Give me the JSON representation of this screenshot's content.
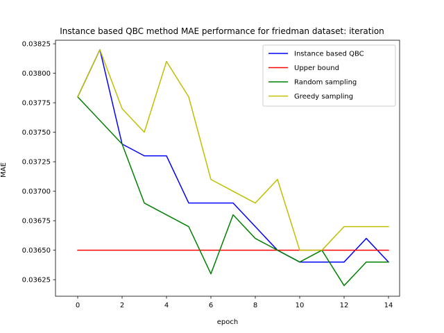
{
  "chart_data": {
    "type": "line",
    "title": "Instance based QBC method MAE performance for friedman dataset: iteration",
    "xlabel": "epoch",
    "ylabel": "MAE",
    "xlim": [
      -1.0,
      14.5
    ],
    "ylim": [
      0.03611,
      0.03828
    ],
    "xticks": [
      0,
      2,
      4,
      6,
      8,
      10,
      12,
      14
    ],
    "yticks": [
      0.03625,
      0.0365,
      0.03675,
      0.037,
      0.03725,
      0.0375,
      0.03775,
      0.038,
      0.03825
    ],
    "ytick_labels": [
      "0.03625",
      "0.03650",
      "0.03675",
      "0.03700",
      "0.03725",
      "0.03750",
      "0.03775",
      "0.03800",
      "0.03825"
    ],
    "grid": false,
    "legend_position": "top-right",
    "x": [
      0,
      1,
      2,
      3,
      4,
      5,
      6,
      7,
      8,
      9,
      10,
      11,
      12,
      13,
      14
    ],
    "series": [
      {
        "name": "Instance based QBC",
        "color": "#0000ff",
        "values": [
          0.0378,
          0.0382,
          0.0374,
          0.0373,
          0.0373,
          0.0369,
          0.0369,
          0.0369,
          0.0367,
          0.0365,
          0.0364,
          0.0364,
          0.0364,
          0.0366,
          0.0364
        ]
      },
      {
        "name": "Upper bound",
        "color": "#ff0000",
        "values": [
          0.0365,
          0.0365,
          0.0365,
          0.0365,
          0.0365,
          0.0365,
          0.0365,
          0.0365,
          0.0365,
          0.0365,
          0.0365,
          0.0365,
          0.0365,
          0.0365,
          0.0365
        ]
      },
      {
        "name": "Random sampling",
        "color": "#008000",
        "values": [
          0.0378,
          0.0376,
          0.0374,
          0.0369,
          0.0368,
          0.0367,
          0.0363,
          0.0368,
          0.0366,
          0.0365,
          0.0364,
          0.0365,
          0.0362,
          0.0364,
          0.0364
        ]
      },
      {
        "name": "Greedy sampling",
        "color": "#bfbf00",
        "values": [
          0.0378,
          0.0382,
          0.0377,
          0.0375,
          0.0381,
          0.0378,
          0.0371,
          0.037,
          0.0369,
          0.0371,
          0.0365,
          0.0365,
          0.0367,
          0.0367,
          0.0367
        ]
      }
    ]
  }
}
